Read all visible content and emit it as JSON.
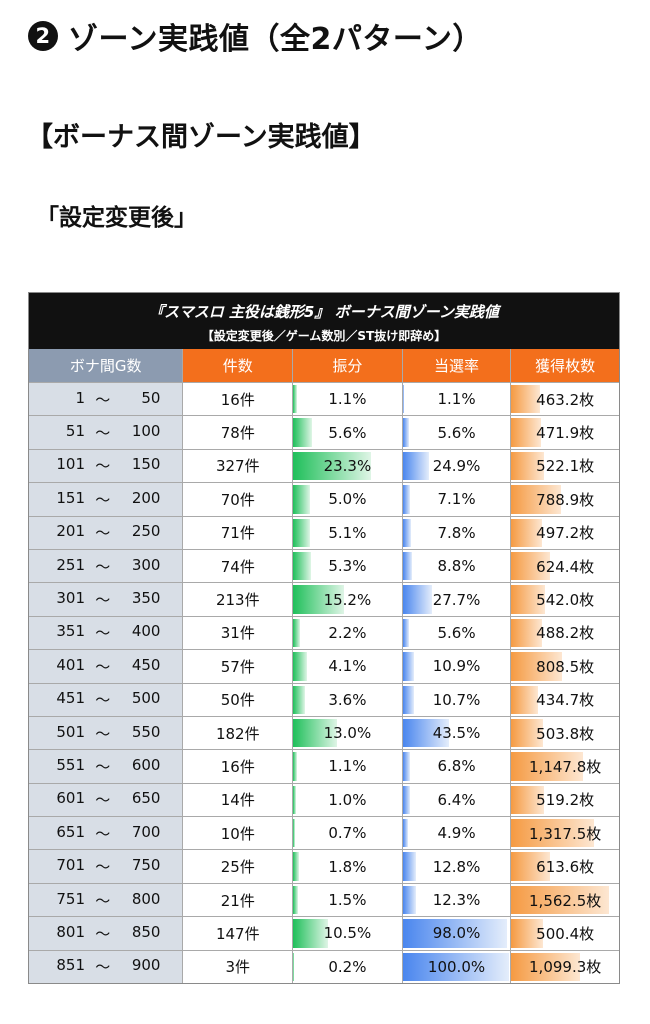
{
  "heading": {
    "badge": "2",
    "title": "ゾーン実践値（全2パターン）"
  },
  "subheading": "【ボーナス間ゾーン実践値】",
  "subheading2": "「設定変更後」",
  "table": {
    "caption": "『スマスロ 主役は銭形5』 ボーナス間ゾーン実践値",
    "caption_sub": "【設定変更後／ゲーム数別／ST抜け即辞め】",
    "headers": [
      "ボナ間G数",
      "件数",
      "振分",
      "当選率",
      "獲得枚数"
    ],
    "range_sep": "～",
    "colors": {
      "header_label": "#8c9bb0",
      "header_accent": "#f36f1c",
      "label_bg": "#d8dee6",
      "green_bar": "#1fbf5a",
      "blue_bar": "#4a86ee",
      "orange_bar": "#f59a42"
    },
    "rows": [
      {
        "from": "1",
        "to": "50",
        "count": "16件",
        "dist": "1.1%",
        "rate": "1.1%",
        "coins": "463.2枚",
        "dist_v": 1.1,
        "rate_v": 1.1,
        "coins_v": 463.2
      },
      {
        "from": "51",
        "to": "100",
        "count": "78件",
        "dist": "5.6%",
        "rate": "5.6%",
        "coins": "471.9枚",
        "dist_v": 5.6,
        "rate_v": 5.6,
        "coins_v": 471.9
      },
      {
        "from": "101",
        "to": "150",
        "count": "327件",
        "dist": "23.3%",
        "rate": "24.9%",
        "coins": "522.1枚",
        "dist_v": 23.3,
        "rate_v": 24.9,
        "coins_v": 522.1
      },
      {
        "from": "151",
        "to": "200",
        "count": "70件",
        "dist": "5.0%",
        "rate": "7.1%",
        "coins": "788.9枚",
        "dist_v": 5.0,
        "rate_v": 7.1,
        "coins_v": 788.9
      },
      {
        "from": "201",
        "to": "250",
        "count": "71件",
        "dist": "5.1%",
        "rate": "7.8%",
        "coins": "497.2枚",
        "dist_v": 5.1,
        "rate_v": 7.8,
        "coins_v": 497.2
      },
      {
        "from": "251",
        "to": "300",
        "count": "74件",
        "dist": "5.3%",
        "rate": "8.8%",
        "coins": "624.4枚",
        "dist_v": 5.3,
        "rate_v": 8.8,
        "coins_v": 624.4
      },
      {
        "from": "301",
        "to": "350",
        "count": "213件",
        "dist": "15.2%",
        "rate": "27.7%",
        "coins": "542.0枚",
        "dist_v": 15.2,
        "rate_v": 27.7,
        "coins_v": 542.0
      },
      {
        "from": "351",
        "to": "400",
        "count": "31件",
        "dist": "2.2%",
        "rate": "5.6%",
        "coins": "488.2枚",
        "dist_v": 2.2,
        "rate_v": 5.6,
        "coins_v": 488.2
      },
      {
        "from": "401",
        "to": "450",
        "count": "57件",
        "dist": "4.1%",
        "rate": "10.9%",
        "coins": "808.5枚",
        "dist_v": 4.1,
        "rate_v": 10.9,
        "coins_v": 808.5
      },
      {
        "from": "451",
        "to": "500",
        "count": "50件",
        "dist": "3.6%",
        "rate": "10.7%",
        "coins": "434.7枚",
        "dist_v": 3.6,
        "rate_v": 10.7,
        "coins_v": 434.7
      },
      {
        "from": "501",
        "to": "550",
        "count": "182件",
        "dist": "13.0%",
        "rate": "43.5%",
        "coins": "503.8枚",
        "dist_v": 13.0,
        "rate_v": 43.5,
        "coins_v": 503.8
      },
      {
        "from": "551",
        "to": "600",
        "count": "16件",
        "dist": "1.1%",
        "rate": "6.8%",
        "coins": "1,147.8枚",
        "dist_v": 1.1,
        "rate_v": 6.8,
        "coins_v": 1147.8
      },
      {
        "from": "601",
        "to": "650",
        "count": "14件",
        "dist": "1.0%",
        "rate": "6.4%",
        "coins": "519.2枚",
        "dist_v": 1.0,
        "rate_v": 6.4,
        "coins_v": 519.2
      },
      {
        "from": "651",
        "to": "700",
        "count": "10件",
        "dist": "0.7%",
        "rate": "4.9%",
        "coins": "1,317.5枚",
        "dist_v": 0.7,
        "rate_v": 4.9,
        "coins_v": 1317.5
      },
      {
        "from": "701",
        "to": "750",
        "count": "25件",
        "dist": "1.8%",
        "rate": "12.8%",
        "coins": "613.6枚",
        "dist_v": 1.8,
        "rate_v": 12.8,
        "coins_v": 613.6
      },
      {
        "from": "751",
        "to": "800",
        "count": "21件",
        "dist": "1.5%",
        "rate": "12.3%",
        "coins": "1,562.5枚",
        "dist_v": 1.5,
        "rate_v": 12.3,
        "coins_v": 1562.5
      },
      {
        "from": "801",
        "to": "850",
        "count": "147件",
        "dist": "10.5%",
        "rate": "98.0%",
        "coins": "500.4枚",
        "dist_v": 10.5,
        "rate_v": 98.0,
        "coins_v": 500.4
      },
      {
        "from": "851",
        "to": "900",
        "count": "3件",
        "dist": "0.2%",
        "rate": "100.0%",
        "coins": "1,099.3枚",
        "dist_v": 0.2,
        "rate_v": 100.0,
        "coins_v": 1099.3
      }
    ]
  }
}
